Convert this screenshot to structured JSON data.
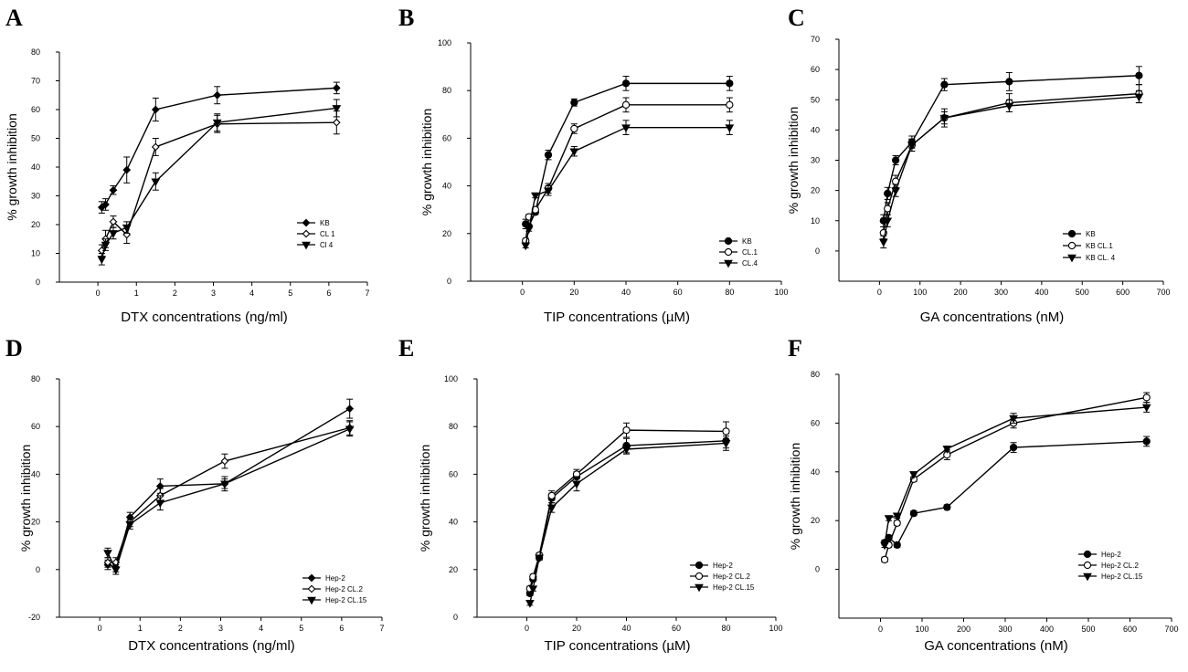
{
  "chart_data": [
    {
      "type": "line",
      "panel_label": "A",
      "xlabel": "DTX concentrations (ng/ml)",
      "ylabel": "% growth inhibition",
      "xlim": [
        -1,
        7
      ],
      "ylim": [
        0,
        80
      ],
      "xticks": [
        0,
        1,
        2,
        3,
        4,
        5,
        6,
        7
      ],
      "yticks": [
        0,
        10,
        20,
        30,
        40,
        50,
        60,
        70,
        80
      ],
      "legend_position": "lower-right",
      "series": [
        {
          "name": "KB",
          "marker": "diamond-filled",
          "x": [
            0.1,
            0.2,
            0.4,
            0.75,
            1.5,
            3.1,
            6.2
          ],
          "y": [
            26,
            27,
            32,
            39,
            60,
            65,
            67.5
          ],
          "err": [
            2,
            2,
            1.5,
            4.5,
            4,
            3,
            2
          ]
        },
        {
          "name": "CL 1",
          "marker": "diamond-open",
          "x": [
            0.1,
            0.2,
            0.4,
            0.75,
            1.5,
            3.1,
            6.2
          ],
          "y": [
            11,
            15,
            21,
            16.5,
            47,
            55,
            55.5
          ],
          "err": [
            2,
            3,
            2,
            3,
            3,
            3,
            4
          ]
        },
        {
          "name": "Cl 4",
          "marker": "triangle-down",
          "x": [
            0.1,
            0.2,
            0.4,
            0.75,
            1.5,
            3.1,
            6.2
          ],
          "y": [
            8,
            13,
            17,
            19,
            35,
            55.5,
            60.5
          ],
          "err": [
            2,
            2,
            2,
            2,
            3,
            3,
            3
          ]
        }
      ]
    },
    {
      "type": "line",
      "panel_label": "B",
      "xlabel": "TIP concentrations (µM)",
      "ylabel": "% growth inhibition",
      "xlim": [
        -20,
        100
      ],
      "ylim": [
        0,
        100
      ],
      "xticks": [
        0,
        20,
        40,
        60,
        80,
        100
      ],
      "yticks": [
        0,
        20,
        40,
        60,
        80,
        100
      ],
      "legend_position": "lower-right",
      "series": [
        {
          "name": "KB",
          "marker": "circle-filled",
          "x": [
            1.25,
            2.5,
            5,
            10,
            20,
            40,
            80
          ],
          "y": [
            24,
            23,
            29,
            53,
            75,
            83,
            83
          ],
          "err": [
            2,
            1,
            1,
            2,
            1.5,
            3,
            3
          ]
        },
        {
          "name": "CL.1",
          "marker": "circle-open",
          "x": [
            1.25,
            2.5,
            5,
            10,
            20,
            40,
            80
          ],
          "y": [
            17,
            27,
            30,
            39,
            64,
            74,
            74
          ],
          "err": [
            1,
            1,
            1,
            2,
            2,
            3,
            3
          ]
        },
        {
          "name": "CL.4",
          "marker": "triangle-down",
          "x": [
            1.25,
            2.5,
            5,
            10,
            20,
            40,
            80
          ],
          "y": [
            15,
            22,
            36,
            38,
            54.5,
            64.5,
            64.5
          ],
          "err": [
            1,
            1,
            1,
            2,
            2,
            3,
            3
          ]
        }
      ]
    },
    {
      "type": "line",
      "panel_label": "C",
      "xlabel": "GA concentrations (nM)",
      "ylabel": "% growth inhibition",
      "xlim": [
        -100,
        700
      ],
      "ylim": [
        -10,
        70
      ],
      "xticks": [
        0,
        100,
        200,
        300,
        400,
        500,
        600,
        700
      ],
      "yticks": [
        0,
        10,
        20,
        30,
        40,
        50,
        60,
        70
      ],
      "legend_position": "lower-right",
      "series": [
        {
          "name": "KB",
          "marker": "circle-filled",
          "x": [
            10,
            20,
            40,
            80,
            160,
            320,
            640
          ],
          "y": [
            10,
            19,
            30,
            36,
            55,
            56,
            58
          ],
          "err": [
            2,
            2,
            1.5,
            2,
            2,
            3,
            3
          ]
        },
        {
          "name": "KB CL.1",
          "marker": "circle-open",
          "x": [
            10,
            20,
            40,
            80,
            160,
            320,
            640
          ],
          "y": [
            6,
            14,
            23,
            35,
            44,
            49,
            52
          ],
          "err": [
            2,
            2,
            2,
            2,
            3,
            3,
            3
          ]
        },
        {
          "name": "KB CL. 4",
          "marker": "triangle-down",
          "x": [
            10,
            20,
            40,
            80,
            160,
            320,
            640
          ],
          "y": [
            3,
            10,
            20,
            35,
            44,
            48,
            51
          ],
          "err": [
            2,
            2,
            2,
            2,
            2,
            2,
            2
          ]
        }
      ]
    },
    {
      "type": "line",
      "panel_label": "D",
      "xlabel": "DTX concentrations (ng/ml)",
      "ylabel": "% growth inhibition",
      "xlim": [
        -1,
        7
      ],
      "ylim": [
        -20,
        80
      ],
      "xticks": [
        0,
        1,
        2,
        3,
        4,
        5,
        6,
        7
      ],
      "yticks": [
        -20,
        0,
        20,
        40,
        60,
        80
      ],
      "legend_position": "lower-right",
      "series": [
        {
          "name": "Hep-2",
          "marker": "diamond-filled",
          "x": [
            0.2,
            0.4,
            0.75,
            1.5,
            3.1,
            6.2
          ],
          "y": [
            2,
            1,
            22,
            35,
            36,
            67.5
          ],
          "err": [
            2,
            2,
            2,
            3,
            3,
            4
          ]
        },
        {
          "name": "Hep-2 CL.2",
          "marker": "diamond-open",
          "x": [
            0.2,
            0.4,
            0.75,
            1.5,
            3.1,
            6.2
          ],
          "y": [
            3,
            3,
            20,
            31,
            45.5,
            59.5
          ],
          "err": [
            2,
            2,
            2,
            3,
            3,
            3
          ]
        },
        {
          "name": "Hep-2 CL.15",
          "marker": "triangle-down",
          "x": [
            0.2,
            0.4,
            0.75,
            1.5,
            3.1,
            6.2
          ],
          "y": [
            7,
            0,
            19,
            28,
            36,
            59
          ],
          "err": [
            2,
            2,
            2,
            3,
            2,
            3
          ]
        }
      ]
    },
    {
      "type": "line",
      "panel_label": "E",
      "xlabel": "TIP concentrations (µM)",
      "ylabel": "% growth inhibition",
      "xlim": [
        -20,
        100
      ],
      "ylim": [
        0,
        100
      ],
      "xticks": [
        0,
        20,
        40,
        60,
        80,
        100
      ],
      "yticks": [
        0,
        20,
        40,
        60,
        80,
        100
      ],
      "legend_position": "lower-right",
      "series": [
        {
          "name": "Hep-2",
          "marker": "circle-filled",
          "x": [
            1.25,
            2.5,
            5,
            10,
            20,
            40,
            80
          ],
          "y": [
            10,
            16,
            25,
            50,
            59,
            72,
            74
          ],
          "err": [
            1,
            1,
            1,
            2,
            2,
            3,
            3
          ]
        },
        {
          "name": "Hep-2 CL.2",
          "marker": "circle-open",
          "x": [
            1.25,
            2.5,
            5,
            10,
            20,
            40,
            80
          ],
          "y": [
            12,
            17,
            26,
            51,
            60,
            78.5,
            78
          ],
          "err": [
            1,
            1,
            1,
            2,
            2,
            3,
            4
          ]
        },
        {
          "name": "Hep-2 CL.15",
          "marker": "triangle-down",
          "x": [
            1.25,
            2.5,
            5,
            10,
            20,
            40,
            80
          ],
          "y": [
            6,
            12,
            25,
            46,
            56,
            70.5,
            73
          ],
          "err": [
            1,
            1,
            1,
            2,
            3,
            2,
            3
          ]
        }
      ]
    },
    {
      "type": "line",
      "panel_label": "F",
      "xlabel": "GA concentrations (nM)",
      "ylabel": "% growth inhibition",
      "xlim": [
        -100,
        700
      ],
      "ylim": [
        -20,
        80
      ],
      "xticks": [
        0,
        100,
        200,
        300,
        400,
        500,
        600,
        700
      ],
      "yticks": [
        0,
        20,
        40,
        60,
        80
      ],
      "legend_position": "lower-right",
      "series": [
        {
          "name": "Hep-2",
          "marker": "circle-filled",
          "x": [
            10,
            20,
            40,
            80,
            160,
            320,
            640
          ],
          "y": [
            11,
            13,
            10,
            23,
            25.5,
            50,
            52.5
          ],
          "err": [
            1,
            1,
            1,
            1,
            1,
            2,
            2
          ]
        },
        {
          "name": "Hep-2 CL.2",
          "marker": "circle-open",
          "x": [
            10,
            20,
            40,
            80,
            160,
            320,
            640
          ],
          "y": [
            4,
            10,
            19,
            37,
            47,
            60,
            70.5
          ],
          "err": [
            1,
            1,
            1,
            1,
            2,
            2,
            2
          ]
        },
        {
          "name": "Hep-2 CL.15",
          "marker": "triangle-down",
          "x": [
            10,
            20,
            40,
            80,
            160,
            320,
            640
          ],
          "y": [
            10,
            21,
            22,
            39,
            49.5,
            62,
            66.5
          ],
          "err": [
            1,
            1,
            1,
            1,
            1,
            2,
            2
          ]
        }
      ]
    }
  ]
}
